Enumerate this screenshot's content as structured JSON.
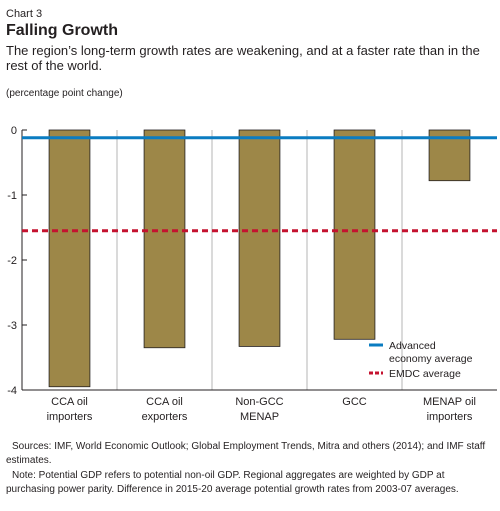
{
  "header": {
    "eyebrow": "Chart 3",
    "title": "Falling Growth",
    "subtitle": "The region’s long-term growth rates are weakening, and at a faster rate than in the rest of the world.",
    "unit": "(percentage point change)"
  },
  "chart_data": {
    "type": "bar",
    "categories": [
      [
        "CCA oil",
        "importers"
      ],
      [
        "CCA oil",
        "exporters"
      ],
      [
        "Non-GCC",
        "MENAP"
      ],
      [
        "GCC"
      ],
      [
        "MENAP oil",
        "importers"
      ]
    ],
    "values": [
      -3.95,
      -3.35,
      -3.33,
      -3.22,
      -0.78
    ],
    "ylim": [
      -4,
      0
    ],
    "yticks": [
      0,
      -1,
      -2,
      -3,
      -4
    ],
    "yticklabels": [
      "0",
      "-1",
      "-2",
      "-3",
      "-4"
    ],
    "reference_lines": [
      {
        "name": "Advanced economy average",
        "label_lines": [
          "Advanced",
          "economy average"
        ],
        "value": -0.12,
        "style": "solid",
        "color": "#0a7cc1"
      },
      {
        "name": "EMDC average",
        "label_lines": [
          "EMDC average"
        ],
        "value": -1.55,
        "style": "dashed",
        "color": "#c4122f"
      }
    ],
    "bar_color": "#9d8748",
    "legend_position": "lower-right",
    "grid": "vertical separators"
  },
  "footer": {
    "sources": "Sources: IMF, World Economic Outlook; Global Employment Trends, Mitra and others (2014); and IMF staff estimates.",
    "note": "Note: Potential GDP refers to potential non-oil GDP. Regional aggregates are weighted by GDP at purchasing power parity. Difference in 2015-20 average potential growth rates from 2003-07 averages."
  }
}
